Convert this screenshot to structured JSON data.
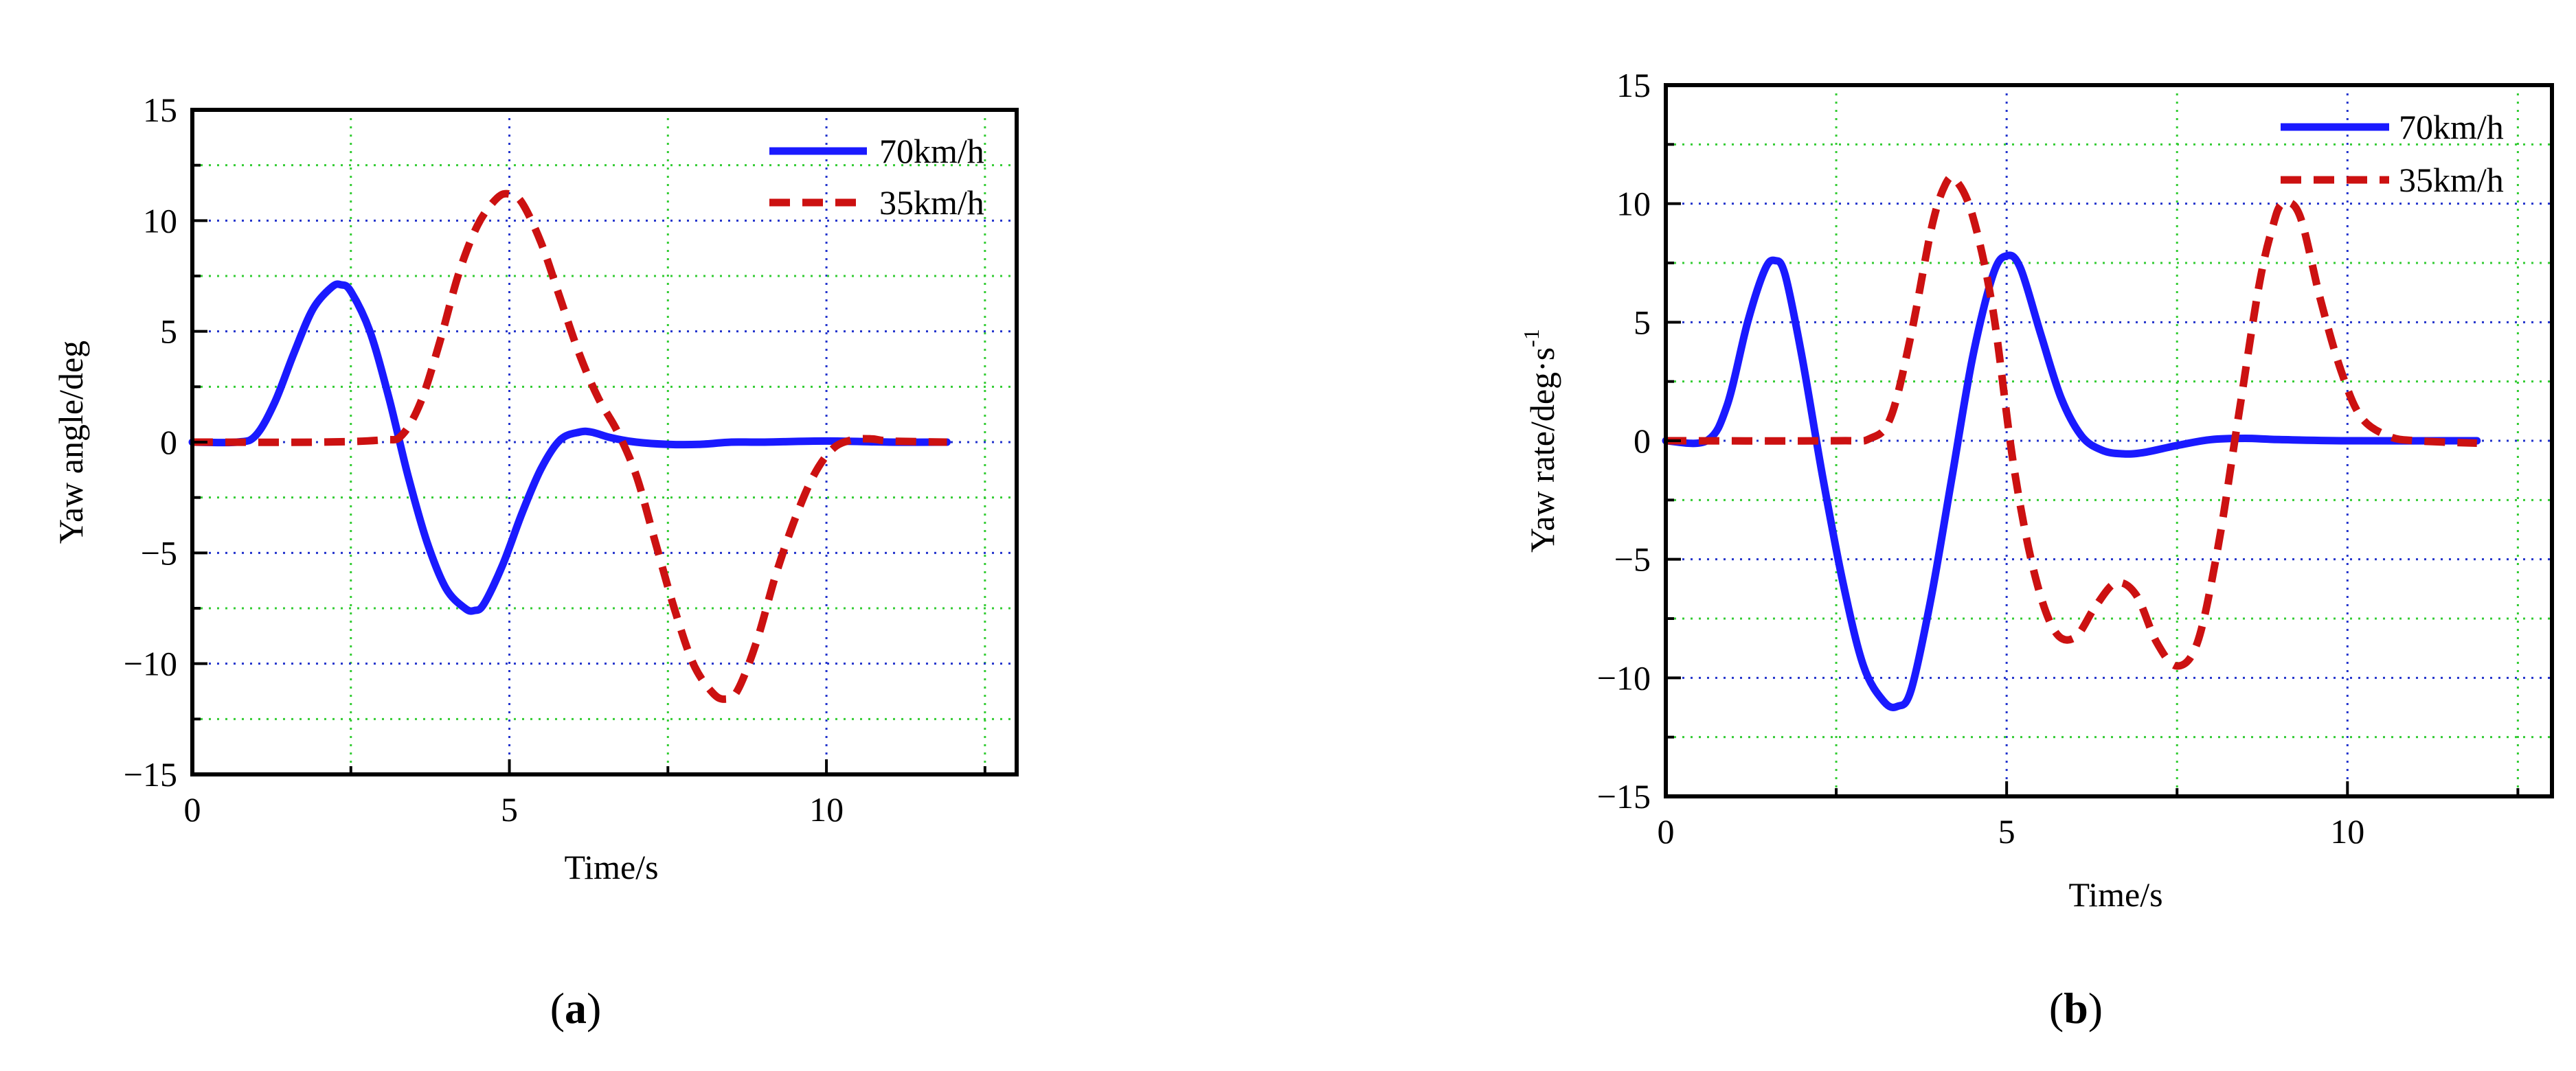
{
  "colors": {
    "series_70": "#1a1aff",
    "series_35": "#cc1111",
    "major_grid": "#2233cc",
    "minor_grid": "#33cc33",
    "axis": "#000000"
  },
  "captions": [
    {
      "open": "(",
      "letter": "a",
      "close": ")"
    },
    {
      "open": "(",
      "letter": "b",
      "close": ")"
    }
  ],
  "chart_data": [
    {
      "type": "line",
      "panel": "a",
      "xlabel": "Time/s",
      "ylabel": "Yaw angle/deg",
      "xlim": [
        0,
        13
      ],
      "ylim": [
        -15,
        15
      ],
      "xticks": [
        0,
        5,
        10
      ],
      "yticks": [
        -15,
        -10,
        -5,
        0,
        5,
        10,
        15
      ],
      "grid": true,
      "legend_position": "top-right",
      "series": [
        {
          "name": "70km/h",
          "style": "solid",
          "x": [
            0,
            0.7,
            1.0,
            1.3,
            1.6,
            1.9,
            2.2,
            2.35,
            2.5,
            2.8,
            3.1,
            3.4,
            3.7,
            4.0,
            4.3,
            4.45,
            4.6,
            4.9,
            5.2,
            5.5,
            5.8,
            6.1,
            6.3,
            6.6,
            7.0,
            7.5,
            8.0,
            8.5,
            9.0,
            10.0,
            11.0,
            11.9
          ],
          "values": [
            0,
            0,
            0.3,
            1.8,
            4.0,
            6.0,
            7.0,
            7.1,
            6.8,
            5.0,
            2.0,
            -1.5,
            -4.5,
            -6.6,
            -7.5,
            -7.6,
            -7.3,
            -5.5,
            -3.2,
            -1.2,
            0.1,
            0.45,
            0.45,
            0.2,
            0,
            -0.1,
            -0.1,
            0,
            0,
            0.05,
            0,
            0
          ]
        },
        {
          "name": "35km/h",
          "style": "dashed",
          "x": [
            0,
            2.0,
            3.0,
            3.3,
            3.6,
            3.9,
            4.2,
            4.5,
            4.8,
            5.0,
            5.2,
            5.5,
            5.8,
            6.1,
            6.4,
            6.7,
            7.0,
            7.3,
            7.6,
            7.9,
            8.2,
            8.4,
            8.6,
            8.9,
            9.2,
            9.5,
            9.8,
            10.1,
            10.4,
            10.7,
            11.0,
            11.9
          ],
          "values": [
            0,
            0,
            0.1,
            0.3,
            1.8,
            4.5,
            7.6,
            9.8,
            11.0,
            11.2,
            10.8,
            9.0,
            6.5,
            4.0,
            2.0,
            0.5,
            -1.5,
            -4.5,
            -7.5,
            -10.0,
            -11.3,
            -11.6,
            -11.2,
            -9.0,
            -6.0,
            -3.5,
            -1.5,
            -0.3,
            0.1,
            0.15,
            0.05,
            0
          ]
        }
      ]
    },
    {
      "type": "line",
      "panel": "b",
      "xlabel": "Time/s",
      "ylabel": "Yaw rate/deg·s",
      "ylabel_superscript": "-1",
      "xlim": [
        0,
        13
      ],
      "ylim": [
        -15,
        15
      ],
      "xticks": [
        0,
        5,
        10
      ],
      "yticks": [
        -15,
        -10,
        -5,
        0,
        5,
        10,
        15
      ],
      "grid": true,
      "legend_position": "top-right",
      "series": [
        {
          "name": "70km/h",
          "style": "solid",
          "x": [
            0,
            0.6,
            0.9,
            1.2,
            1.45,
            1.6,
            1.75,
            2.0,
            2.3,
            2.6,
            2.9,
            3.2,
            3.4,
            3.6,
            3.9,
            4.2,
            4.5,
            4.8,
            5.0,
            5.2,
            5.5,
            5.8,
            6.1,
            6.4,
            6.7,
            7.0,
            7.5,
            8.0,
            8.5,
            9.0,
            10.0,
            11.9
          ],
          "values": [
            0,
            0,
            1.5,
            5.0,
            7.2,
            7.6,
            7.0,
            3.5,
            -1.5,
            -6.0,
            -9.5,
            -11.0,
            -11.2,
            -10.5,
            -6.5,
            -1.5,
            3.5,
            7.0,
            7.8,
            7.3,
            4.5,
            1.8,
            0.2,
            -0.4,
            -0.55,
            -0.5,
            -0.2,
            0.05,
            0.1,
            0.05,
            0,
            0
          ]
        },
        {
          "name": "35km/h",
          "style": "dashed",
          "x": [
            0,
            2.5,
            3.0,
            3.3,
            3.6,
            3.9,
            4.1,
            4.25,
            4.5,
            4.8,
            5.1,
            5.4,
            5.7,
            6.0,
            6.3,
            6.6,
            6.9,
            7.2,
            7.5,
            7.8,
            8.1,
            8.4,
            8.7,
            8.9,
            9.05,
            9.3,
            9.6,
            9.9,
            10.2,
            10.6,
            11.0,
            11.9
          ],
          "values": [
            0,
            0,
            0.1,
            1.0,
            4.5,
            9.0,
            10.8,
            11.0,
            9.5,
            5.5,
            -1.0,
            -5.5,
            -8.0,
            -8.3,
            -7.0,
            -6.0,
            -6.5,
            -8.5,
            -9.5,
            -8.5,
            -4.5,
            1.0,
            6.5,
            9.0,
            10.0,
            9.5,
            6.0,
            3.0,
            1.0,
            0.2,
            0,
            -0.1
          ]
        }
      ]
    }
  ]
}
